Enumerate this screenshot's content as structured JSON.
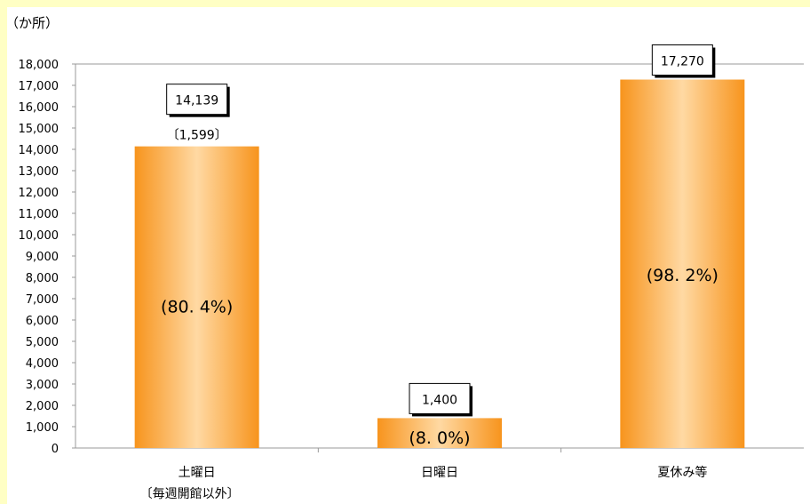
{
  "chart_data": {
    "type": "bar",
    "unit_label": "（か所）",
    "categories": [
      "土曜日",
      "日曜日",
      "夏休み等"
    ],
    "category_sublabels": [
      "〔毎週開館以外〕",
      "",
      ""
    ],
    "values": [
      14139,
      1400,
      17270
    ],
    "value_labels": [
      "14,139",
      "1,400",
      "17,270"
    ],
    "bracket_labels": [
      "〔1,599〕",
      "",
      ""
    ],
    "percent_labels": [
      "(80. 4%)",
      "(8. 0%)",
      "(98. 2%)"
    ],
    "ylim": [
      0,
      18000
    ],
    "ytick_step": 1000,
    "ytick_labels": [
      "0",
      "1,000",
      "2,000",
      "3,000",
      "4,000",
      "5,000",
      "6,000",
      "7,000",
      "8,000",
      "9,000",
      "10,000",
      "11,000",
      "12,000",
      "13,000",
      "14,000",
      "15,000",
      "16,000",
      "17,000",
      "18,000"
    ],
    "grid": "top line only",
    "colors": {
      "bar_edge": "#f7941d",
      "bar_center": "#ffd9a3",
      "frame": "#ffffc4"
    }
  }
}
